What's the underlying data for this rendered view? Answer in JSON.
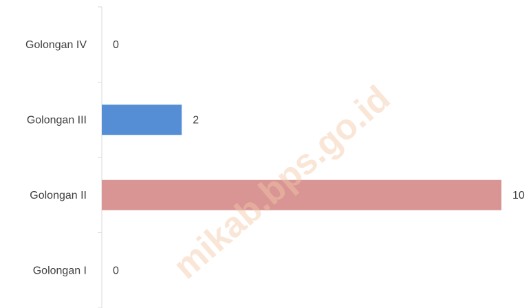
{
  "chart_data": {
    "type": "bar",
    "orientation": "horizontal",
    "categories": [
      "Golongan IV",
      "Golongan III",
      "Golongan II",
      "Golongan I"
    ],
    "values": [
      0,
      2,
      10,
      0
    ],
    "colors": [
      "#558ed5",
      "#558ed5",
      "#d99594",
      "#558ed5"
    ],
    "xlim": [
      0,
      10
    ],
    "watermark": "mikab.bps.go.id"
  }
}
